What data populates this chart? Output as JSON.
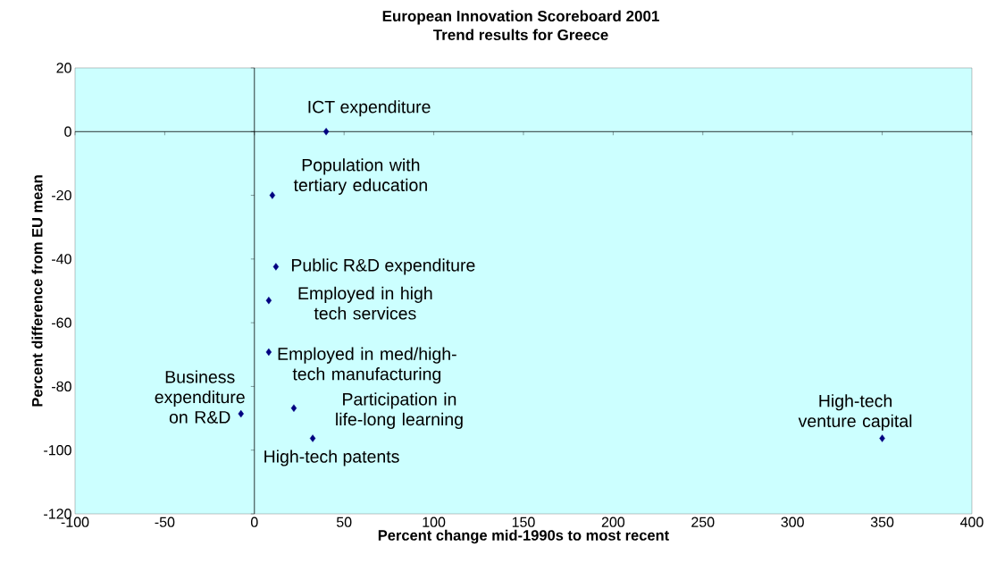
{
  "chart_data": {
    "type": "scatter",
    "title": "European Innovation Scoreboard 2001",
    "subtitle": "Trend results for Greece",
    "xlabel": "Percent change mid-1990s to most recent",
    "ylabel": "Percent difference from EU mean",
    "x": [
      40,
      10,
      12,
      8,
      8,
      -7.5,
      22,
      32.5,
      350
    ],
    "values": [
      0,
      -20,
      -42.4,
      -53,
      -69.2,
      -88.6,
      -86.8,
      -96.3,
      -96.3
    ],
    "color": "#000080",
    "marker": "diamond",
    "xlim": [
      -100,
      400
    ],
    "xticks": [
      -100,
      -50,
      0,
      50,
      100,
      150,
      200,
      250,
      300,
      350,
      400
    ],
    "ylim": [
      -120,
      20
    ],
    "yticks": [
      -120,
      -100,
      -80,
      -60,
      -40,
      -20,
      0,
      20
    ],
    "annotations": [
      {
        "text": "ICT expenditure",
        "x": 40,
        "y": 0
      },
      {
        "text": "Population with tertiary education",
        "x": 10,
        "y": -20
      },
      {
        "text": "Public R&D expenditure",
        "x": 12,
        "y": -42.4
      },
      {
        "text": "Employed in high tech services",
        "x": 8,
        "y": -53
      },
      {
        "text": "Employed in med/high-tech manufacturing",
        "x": 8,
        "y": -69.2
      },
      {
        "text": "Business expenditure on R&D",
        "x": -7.5,
        "y": -88.6
      },
      {
        "text": "Participation in life-long learning",
        "x": 22,
        "y": -86.8
      },
      {
        "text": "High-tech patents",
        "x": 32.5,
        "y": -96.3
      },
      {
        "text": "High-tech venture capital",
        "x": 350,
        "y": -96.3
      }
    ]
  }
}
